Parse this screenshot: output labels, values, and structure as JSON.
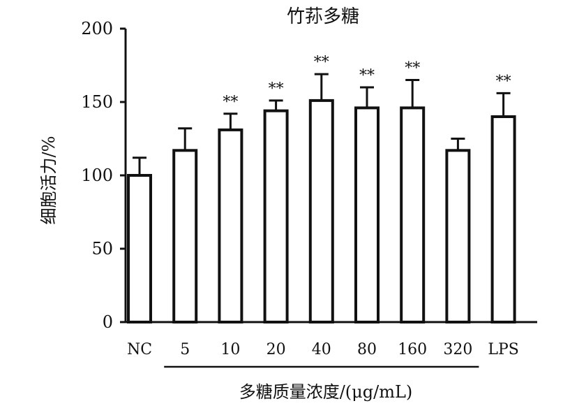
{
  "chart_data": {
    "type": "bar",
    "title": "竹荪多糖",
    "ylabel": "细胞活力/%",
    "xlabel": "多糖质量浓度/(μg/mL)",
    "ylim": [
      0,
      200
    ],
    "yticks": [
      0,
      50,
      100,
      150,
      200
    ],
    "categories": [
      "NC",
      "5",
      "10",
      "20",
      "40",
      "80",
      "160",
      "320",
      "LPS"
    ],
    "values": [
      100,
      117,
      131,
      144,
      151,
      146,
      146,
      117,
      140
    ],
    "errors": [
      12,
      15,
      11,
      7,
      18,
      14,
      19,
      8,
      16
    ],
    "significance": [
      "",
      "",
      "**",
      "**",
      "**",
      "**",
      "**",
      "",
      "**"
    ],
    "bar_fill": "#ffffff",
    "bar_stroke": "#111111",
    "grid": false
  }
}
